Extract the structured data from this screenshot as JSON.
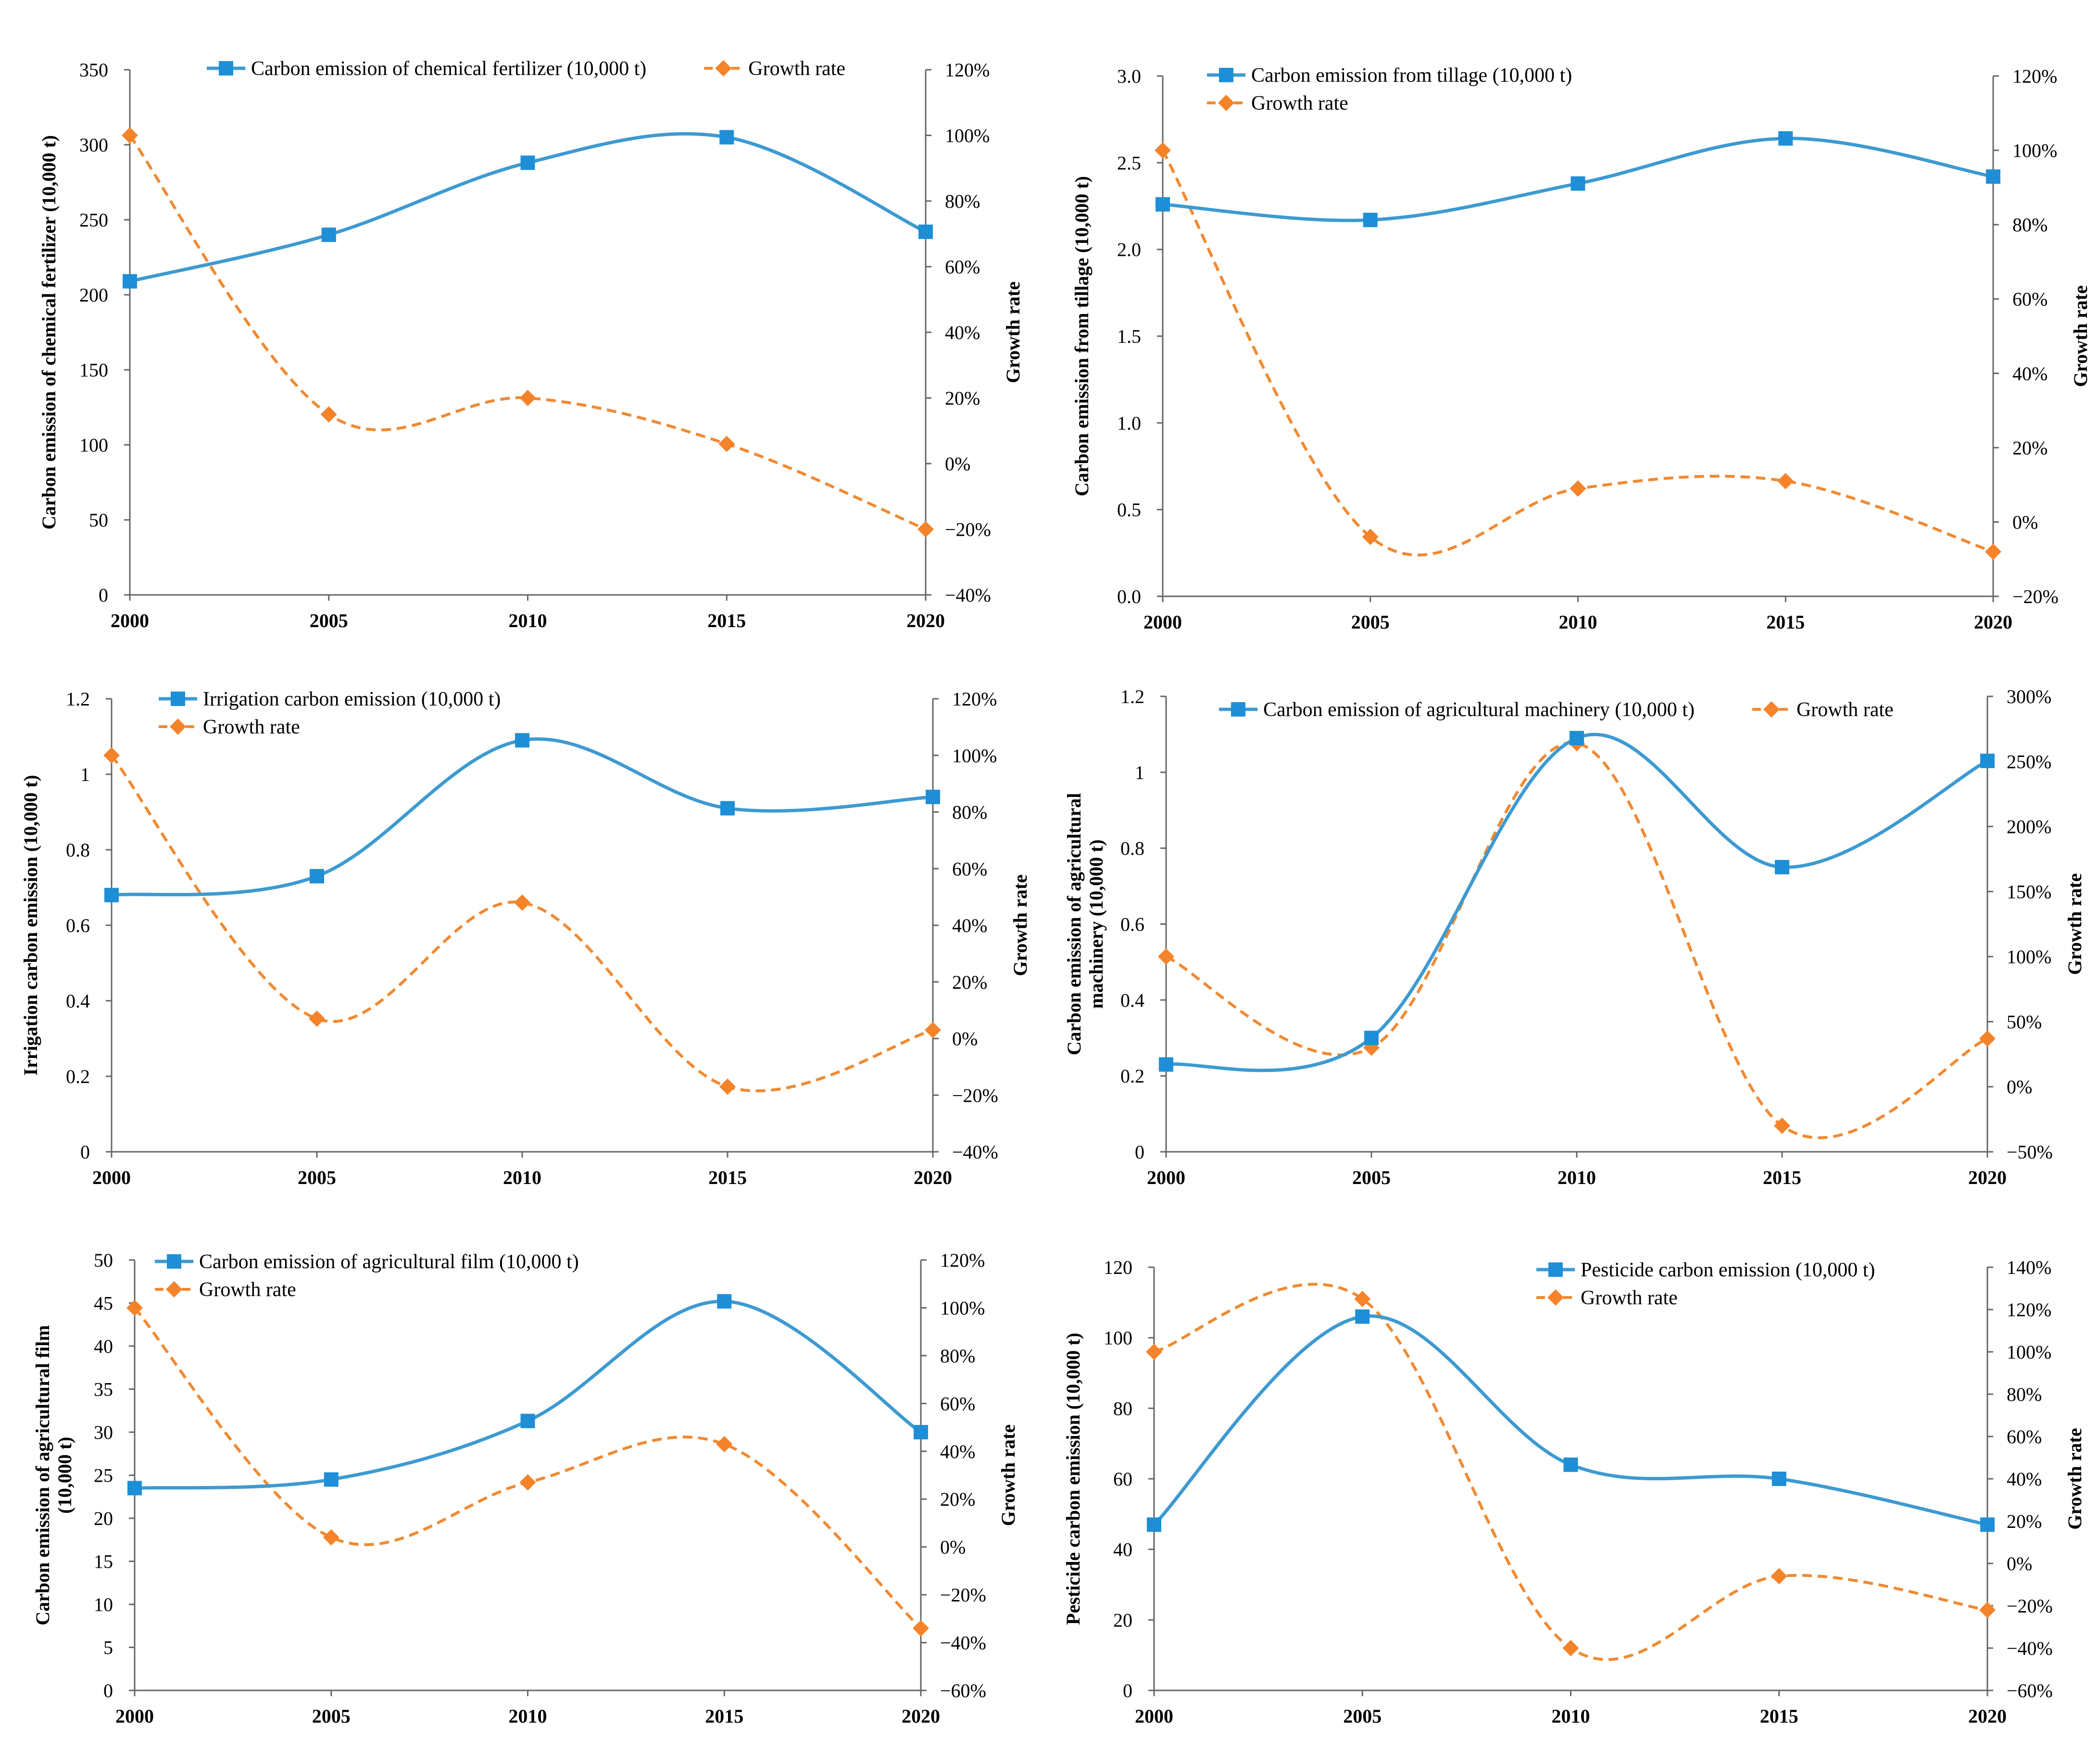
{
  "colors": {
    "emission": "#3d9ad1",
    "emission_marker": "#1e8fd6",
    "growth": "#f08a32",
    "growth_marker": "#f5832a",
    "axis": "#666666"
  },
  "chart_data": [
    {
      "id": "fertilizer",
      "type": "line",
      "x": [
        "2000",
        "2005",
        "2010",
        "2015",
        "2020"
      ],
      "series": [
        {
          "name": "Carbon emission of chemical fertilizer (10,000 t)",
          "axis": "left",
          "values": [
            209,
            240,
            288,
            305,
            242
          ]
        },
        {
          "name": "Growth rate",
          "axis": "right",
          "values": [
            100,
            15,
            20,
            6,
            -20
          ]
        }
      ],
      "ylabel_left": [
        "Carbon emission of chemical fertilizer (10,000 t)"
      ],
      "ylabel_right": "Growth rate",
      "ylim_left": [
        0,
        350
      ],
      "yticks_left": [
        "0",
        "50",
        "100",
        "150",
        "200",
        "250",
        "300",
        "350"
      ],
      "ylim_right": [
        -40,
        120
      ],
      "yticks_right": [
        "-40%",
        "-20%",
        "0%",
        "20%",
        "40%",
        "60%",
        "80%",
        "100%",
        "120%"
      ],
      "legend_layout": "row"
    },
    {
      "id": "tillage",
      "type": "line",
      "x": [
        "2000",
        "2005",
        "2010",
        "2015",
        "2020"
      ],
      "series": [
        {
          "name": "Carbon emission from tillage (10,000 t)",
          "axis": "left",
          "values": [
            2.26,
            2.17,
            2.38,
            2.64,
            2.42
          ]
        },
        {
          "name": "Growth rate",
          "axis": "right",
          "values": [
            100,
            -4,
            9,
            11,
            -8
          ]
        }
      ],
      "ylabel_left": [
        "Carbon emission from tillage (10,000 t)"
      ],
      "ylabel_right": "Growth rate",
      "ylim_left": [
        0,
        3
      ],
      "yticks_left": [
        "0.0",
        "0.5",
        "1.0",
        "1.5",
        "2.0",
        "2.5",
        "3.0"
      ],
      "ylim_right": [
        -20,
        120
      ],
      "yticks_right": [
        "-20%",
        "0%",
        "20%",
        "40%",
        "60%",
        "80%",
        "100%",
        "120%"
      ],
      "legend_layout": "column"
    },
    {
      "id": "irrigation",
      "type": "line",
      "x": [
        "2000",
        "2005",
        "2010",
        "2015",
        "2020"
      ],
      "series": [
        {
          "name": "Irrigation carbon emission (10,000 t)",
          "axis": "left",
          "values": [
            0.68,
            0.73,
            1.09,
            0.91,
            0.94
          ]
        },
        {
          "name": "Growth rate",
          "axis": "right",
          "values": [
            100,
            7,
            48,
            -17,
            3
          ]
        }
      ],
      "ylabel_left": [
        "Irrigation carbon emission (10,000 t)"
      ],
      "ylabel_right": "Growth rate",
      "ylim_left": [
        0,
        1.2
      ],
      "yticks_left": [
        "0",
        "0.2",
        "0.4",
        "0.6",
        "0.8",
        "1",
        "1.2"
      ],
      "ylim_right": [
        -40,
        120
      ],
      "yticks_right": [
        "-40%",
        "-20%",
        "0%",
        "20%",
        "40%",
        "60%",
        "80%",
        "100%",
        "120%"
      ],
      "legend_layout": "column"
    },
    {
      "id": "machinery",
      "type": "line",
      "x": [
        "2000",
        "2005",
        "2010",
        "2015",
        "2020"
      ],
      "series": [
        {
          "name": "Carbon emission of agricultural machinery (10,000 t)",
          "axis": "left",
          "values": [
            0.23,
            0.3,
            1.09,
            0.75,
            1.03
          ]
        },
        {
          "name": "Growth rate",
          "axis": "right",
          "values": [
            100,
            30,
            264,
            -30,
            37
          ]
        }
      ],
      "ylabel_left": [
        "Carbon emission of agricultural",
        "machinery (10,000 t)"
      ],
      "ylabel_right": "Growth rate",
      "ylim_left": [
        0,
        1.2
      ],
      "yticks_left": [
        "0",
        "0.2",
        "0.4",
        "0.6",
        "0.8",
        "1",
        "1.2"
      ],
      "ylim_right": [
        -50,
        300
      ],
      "yticks_right": [
        "-50%",
        "0%",
        "50%",
        "100%",
        "150%",
        "200%",
        "250%",
        "300%"
      ],
      "legend_layout": "row"
    },
    {
      "id": "film",
      "type": "line",
      "x": [
        "2000",
        "2005",
        "2010",
        "2015",
        "2020"
      ],
      "series": [
        {
          "name": "Carbon emission of agricultural film (10,000 t)",
          "axis": "left",
          "values": [
            23.5,
            24.5,
            31.3,
            45.2,
            30
          ]
        },
        {
          "name": "Growth rate",
          "axis": "right",
          "values": [
            100,
            4,
            27,
            43,
            -34
          ]
        }
      ],
      "ylabel_left": [
        "Carbon emission of agricultural film",
        "(10,000 t)"
      ],
      "ylabel_right": "Growth rate",
      "ylim_left": [
        0,
        50
      ],
      "yticks_left": [
        "0",
        "5",
        "10",
        "15",
        "20",
        "25",
        "30",
        "35",
        "40",
        "45",
        "50"
      ],
      "ylim_right": [
        -60,
        120
      ],
      "yticks_right": [
        "-60%",
        "-40%",
        "-20%",
        "0%",
        "20%",
        "40%",
        "60%",
        "80%",
        "100%",
        "120%"
      ],
      "legend_layout": "column"
    },
    {
      "id": "pesticide",
      "type": "line",
      "x": [
        "2000",
        "2005",
        "2010",
        "2015",
        "2020"
      ],
      "series": [
        {
          "name": "Pesticide carbon emission (10,000 t)",
          "axis": "left",
          "values": [
            47,
            106,
            64,
            60,
            47
          ]
        },
        {
          "name": "Growth rate",
          "axis": "right",
          "values": [
            100,
            125,
            -40,
            -6,
            -22
          ]
        }
      ],
      "ylabel_left": [
        "Pesticide carbon emission (10,000 t)"
      ],
      "ylabel_right": "Growth rate",
      "ylim_left": [
        0,
        120
      ],
      "yticks_left": [
        "0",
        "20",
        "40",
        "60",
        "80",
        "100",
        "120"
      ],
      "ylim_right": [
        -60,
        140
      ],
      "yticks_right": [
        "-60%",
        "-40%",
        "-20%",
        "0%",
        "20%",
        "40%",
        "60%",
        "80%",
        "100%",
        "120%",
        "140%"
      ],
      "legend_layout": "column"
    }
  ]
}
